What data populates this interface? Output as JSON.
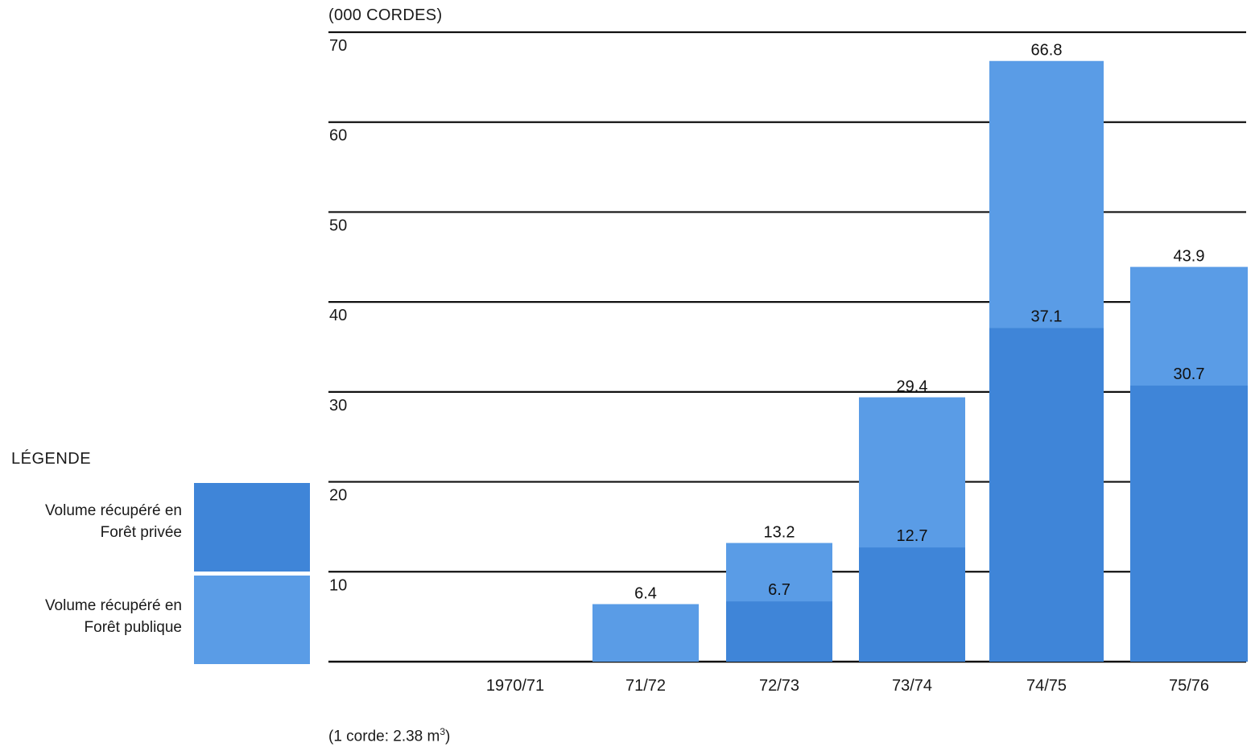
{
  "chart_data": {
    "type": "bar",
    "stacked": true,
    "unit_label": "(000 CORDES)",
    "categories": [
      "1970/71",
      "71/72",
      "72/73",
      "73/74",
      "74/75",
      "75/76"
    ],
    "series": [
      {
        "name": "Volume récupéré en Forêt privée",
        "values": [
          null,
          null,
          6.7,
          12.7,
          37.1,
          30.7
        ],
        "color": "#3f85d8"
      },
      {
        "name": "Volume récupéré en Forêt publique",
        "values": [
          null,
          6.4,
          6.5,
          16.7,
          29.7,
          13.2
        ],
        "color": "#5a9ce6"
      }
    ],
    "totals": [
      null,
      6.4,
      13.2,
      29.4,
      66.8,
      43.9
    ],
    "labels": {
      "private": [
        null,
        null,
        "6.7",
        "12.7",
        "37.1",
        "30.7"
      ],
      "total": [
        null,
        "6.4",
        "13.2",
        "29.4",
        "66.8",
        "43.9"
      ]
    },
    "y_ticks": [
      10,
      20,
      30,
      40,
      50,
      60,
      70
    ],
    "ylim": [
      0,
      70
    ],
    "grid": true,
    "legend_position": "left"
  },
  "legend": {
    "title": "LÉGENDE",
    "private_label_line1": "Volume récupéré en",
    "private_label_line2": "Forêt privée",
    "public_label_line1": "Volume récupéré en",
    "public_label_line2": "Forêt publique"
  },
  "footnote": {
    "text": "(1 corde: 2.38 m",
    "superscript": "3",
    "close": ")"
  }
}
